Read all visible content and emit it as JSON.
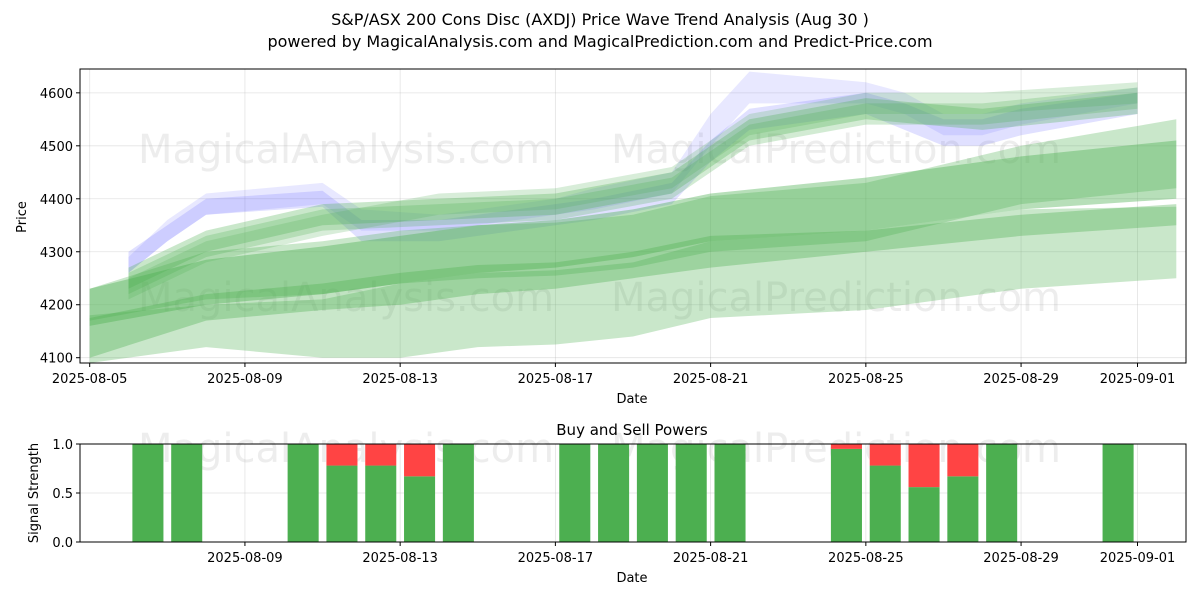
{
  "header": {
    "title": "S&P/ASX 200 Cons Disc (AXDJ) Price Wave Trend Analysis (Aug 30 )",
    "subtitle": "powered by MagicalAnalysis.com and MagicalPrediction.com and Predict-Price.com"
  },
  "watermarks": [
    "MagicalAnalysis.com",
    "MagicalPrediction.com"
  ],
  "colors": {
    "green": "#4caf50",
    "blue": "#6666ff",
    "red": "#ff4444"
  },
  "chart_data": [
    {
      "type": "area",
      "xlabel": "Date",
      "ylabel": "Price",
      "xlim": [
        "2025-08-04T18:00",
        "2025-09-02T06:00"
      ],
      "ylim": [
        4090,
        4645
      ],
      "grid": true,
      "xticks": [
        "2025-08-05",
        "2025-08-09",
        "2025-08-13",
        "2025-08-17",
        "2025-08-21",
        "2025-08-25",
        "2025-08-29",
        "2025-09-01"
      ],
      "yticks": [
        4100,
        4200,
        4300,
        4400,
        4500,
        4600
      ],
      "bands": [
        {
          "color": "blue",
          "opacity": 0.2,
          "x": [
            "2025-08-06",
            "2025-08-07",
            "2025-08-08",
            "2025-08-11",
            "2025-08-12",
            "2025-08-14",
            "2025-08-17",
            "2025-08-18",
            "2025-08-20",
            "2025-08-21",
            "2025-08-22",
            "2025-08-25",
            "2025-08-26",
            "2025-08-27",
            "2025-08-28",
            "2025-08-29",
            "2025-09-01"
          ],
          "upper": [
            4300,
            4350,
            4400,
            4415,
            4360,
            4360,
            4390,
            4400,
            4430,
            4510,
            4570,
            4600,
            4580,
            4550,
            4550,
            4570,
            4600
          ],
          "lower": [
            4260,
            4320,
            4370,
            4385,
            4320,
            4320,
            4350,
            4360,
            4390,
            4470,
            4530,
            4560,
            4530,
            4500,
            4500,
            4520,
            4560
          ]
        },
        {
          "color": "blue",
          "opacity": 0.15,
          "x": [
            "2025-08-06",
            "2025-08-07",
            "2025-08-08",
            "2025-08-11",
            "2025-08-12",
            "2025-08-14",
            "2025-08-17",
            "2025-08-18",
            "2025-08-20",
            "2025-08-21",
            "2025-08-22",
            "2025-08-25",
            "2025-08-26",
            "2025-08-27",
            "2025-08-28",
            "2025-08-29",
            "2025-09-01"
          ],
          "upper": [
            4290,
            4360,
            4410,
            4430,
            4380,
            4370,
            4400,
            4420,
            4450,
            4560,
            4640,
            4620,
            4600,
            4560,
            4560,
            4580,
            4610
          ],
          "lower": [
            4260,
            4320,
            4370,
            4390,
            4340,
            4340,
            4370,
            4380,
            4410,
            4500,
            4580,
            4580,
            4560,
            4520,
            4520,
            4540,
            4580
          ]
        },
        {
          "color": "green",
          "opacity": 0.3,
          "x": [
            "2025-08-06",
            "2025-08-08",
            "2025-08-11",
            "2025-08-14",
            "2025-08-17",
            "2025-08-20",
            "2025-08-22",
            "2025-08-25",
            "2025-08-28",
            "2025-09-01"
          ],
          "upper": [
            4270,
            4340,
            4390,
            4400,
            4410,
            4450,
            4550,
            4590,
            4570,
            4600
          ],
          "lower": [
            4230,
            4300,
            4350,
            4360,
            4370,
            4410,
            4510,
            4550,
            4530,
            4560
          ]
        },
        {
          "color": "green",
          "opacity": 0.25,
          "x": [
            "2025-08-06",
            "2025-08-08",
            "2025-08-11",
            "2025-08-14",
            "2025-08-17",
            "2025-08-20",
            "2025-08-22",
            "2025-08-25",
            "2025-08-28",
            "2025-09-01"
          ],
          "upper": [
            4260,
            4330,
            4380,
            4390,
            4400,
            4440,
            4540,
            4580,
            4580,
            4610
          ],
          "lower": [
            4220,
            4290,
            4340,
            4350,
            4360,
            4400,
            4500,
            4540,
            4540,
            4570
          ]
        },
        {
          "color": "green",
          "opacity": 0.22,
          "x": [
            "2025-08-06",
            "2025-08-08",
            "2025-08-11",
            "2025-08-14",
            "2025-08-17",
            "2025-08-20",
            "2025-08-22",
            "2025-08-25",
            "2025-08-28",
            "2025-09-01"
          ],
          "upper": [
            4250,
            4320,
            4370,
            4410,
            4420,
            4460,
            4560,
            4600,
            4600,
            4620
          ],
          "lower": [
            4210,
            4280,
            4330,
            4370,
            4380,
            4420,
            4520,
            4560,
            4560,
            4580
          ]
        },
        {
          "color": "green",
          "opacity": 0.4,
          "x": [
            "2025-08-05",
            "2025-08-08",
            "2025-08-11",
            "2025-08-13",
            "2025-08-15",
            "2025-08-17",
            "2025-08-19",
            "2025-08-21",
            "2025-08-25",
            "2025-08-29",
            "2025-09-02"
          ],
          "upper": [
            4230,
            4285,
            4310,
            4330,
            4350,
            4360,
            4380,
            4410,
            4440,
            4480,
            4510
          ],
          "lower": [
            4160,
            4200,
            4220,
            4240,
            4260,
            4270,
            4290,
            4320,
            4340,
            4380,
            4400
          ]
        },
        {
          "color": "green",
          "opacity": 0.35,
          "x": [
            "2025-08-05",
            "2025-08-08",
            "2025-08-11",
            "2025-08-13",
            "2025-08-15",
            "2025-08-17",
            "2025-08-19",
            "2025-08-21",
            "2025-08-25",
            "2025-08-29",
            "2025-09-02"
          ],
          "upper": [
            4175,
            4220,
            4240,
            4260,
            4275,
            4280,
            4300,
            4330,
            4340,
            4370,
            4390
          ],
          "lower": [
            4100,
            4170,
            4190,
            4200,
            4220,
            4230,
            4250,
            4270,
            4300,
            4330,
            4350
          ]
        },
        {
          "color": "green",
          "opacity": 0.3,
          "x": [
            "2025-08-05",
            "2025-08-08",
            "2025-08-11",
            "2025-08-13",
            "2025-08-15",
            "2025-08-17",
            "2025-08-19",
            "2025-08-21",
            "2025-08-25",
            "2025-08-29",
            "2025-09-02"
          ],
          "upper": [
            4230,
            4300,
            4320,
            4340,
            4350,
            4355,
            4370,
            4405,
            4430,
            4500,
            4550
          ],
          "lower": [
            4170,
            4210,
            4220,
            4240,
            4250,
            4255,
            4270,
            4300,
            4320,
            4390,
            4420
          ]
        },
        {
          "color": "green",
          "opacity": 0.3,
          "x": [
            "2025-08-05",
            "2025-08-08",
            "2025-08-11",
            "2025-08-13",
            "2025-08-15",
            "2025-08-17",
            "2025-08-19",
            "2025-08-21",
            "2025-08-25",
            "2025-08-29",
            "2025-09-02"
          ],
          "upper": [
            4180,
            4200,
            4210,
            4240,
            4260,
            4265,
            4280,
            4320,
            4340,
            4380,
            4385
          ],
          "lower": [
            4090,
            4120,
            4100,
            4100,
            4120,
            4125,
            4140,
            4175,
            4190,
            4230,
            4250
          ]
        }
      ]
    },
    {
      "type": "bar",
      "title": "Buy and Sell Powers",
      "xlabel": "Date",
      "ylabel": "Signal Strength",
      "ylim": [
        0,
        1
      ],
      "grid": true,
      "xticks": [
        "2025-08-09",
        "2025-08-13",
        "2025-08-17",
        "2025-08-21",
        "2025-08-25",
        "2025-08-29",
        "2025-09-01"
      ],
      "yticks": [
        "0.0",
        "0.5",
        "1.0"
      ],
      "x": [
        "2025-08-06",
        "2025-08-07",
        "2025-08-10",
        "2025-08-11",
        "2025-08-12",
        "2025-08-13",
        "2025-08-14",
        "2025-08-17",
        "2025-08-18",
        "2025-08-19",
        "2025-08-20",
        "2025-08-21",
        "2025-08-24",
        "2025-08-25",
        "2025-08-26",
        "2025-08-27",
        "2025-08-28",
        "2025-08-31"
      ],
      "series": [
        {
          "name": "buy",
          "color": "green",
          "values": [
            1,
            1,
            1,
            0.78,
            0.78,
            0.67,
            1,
            1,
            1,
            1,
            1,
            1,
            0.95,
            0.78,
            0.56,
            0.67,
            1,
            1
          ]
        },
        {
          "name": "sell",
          "color": "red",
          "values": [
            0,
            0,
            0,
            0.22,
            0.22,
            0.33,
            0,
            0,
            0,
            0,
            0,
            0,
            0.05,
            0.22,
            0.44,
            0.33,
            0,
            0
          ]
        }
      ]
    }
  ]
}
